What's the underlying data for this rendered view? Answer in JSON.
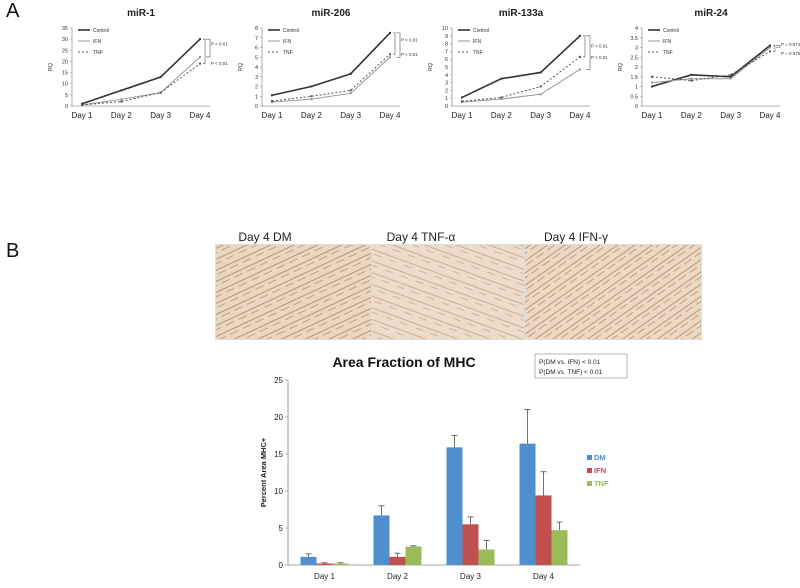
{
  "panels": {
    "a_label": "A",
    "b_label": "B"
  },
  "line_legend": [
    "Control",
    "IFN",
    "TNF"
  ],
  "micrographs": {
    "labels": [
      "Day 4 DM",
      "Day 4 TNF-α",
      "Day 4 IFN-γ"
    ]
  },
  "colors": {
    "dm": "#4f8fd0",
    "ifn": "#c0504d",
    "tnf": "#9bbb59"
  },
  "chart_data": [
    {
      "type": "line",
      "title": "miR-1",
      "ylabel": "RQ",
      "categories": [
        "Day 1",
        "Day 2",
        "Day 3",
        "Day 4"
      ],
      "ylim": [
        0,
        35
      ],
      "yticks": [
        0,
        5,
        10,
        15,
        20,
        25,
        30,
        35
      ],
      "series": [
        {
          "name": "Control",
          "values": [
            1,
            7,
            13,
            30
          ]
        },
        {
          "name": "IFN",
          "values": [
            0.5,
            3,
            6,
            22
          ]
        },
        {
          "name": "TNF",
          "values": [
            0.5,
            2,
            6,
            19
          ]
        }
      ],
      "annotations": [
        "P < 0.01",
        "P < 0.01"
      ]
    },
    {
      "type": "line",
      "title": "miR-206",
      "ylabel": "RQ",
      "categories": [
        "Day 1",
        "Day 2",
        "Day 3",
        "Day 4"
      ],
      "ylim": [
        0,
        8
      ],
      "yticks": [
        0,
        1,
        2,
        3,
        4,
        5,
        6,
        7,
        8
      ],
      "series": [
        {
          "name": "Control",
          "values": [
            1.1,
            2,
            3.3,
            7.5
          ]
        },
        {
          "name": "IFN",
          "values": [
            0.4,
            0.7,
            1.3,
            5
          ]
        },
        {
          "name": "TNF",
          "values": [
            0.5,
            1,
            1.6,
            5.3
          ]
        }
      ],
      "annotations": [
        "P < 0.01",
        "P < 0.01"
      ]
    },
    {
      "type": "line",
      "title": "miR-133a",
      "ylabel": "RQ",
      "categories": [
        "Day 1",
        "Day 2",
        "Day 3",
        "Day 4"
      ],
      "ylim": [
        0,
        10
      ],
      "yticks": [
        0,
        1,
        2,
        3,
        4,
        5,
        6,
        7,
        8,
        9,
        10
      ],
      "series": [
        {
          "name": "Control",
          "values": [
            1.1,
            3.5,
            4.3,
            9
          ]
        },
        {
          "name": "IFN",
          "values": [
            0.5,
            0.9,
            1.5,
            4.7
          ]
        },
        {
          "name": "TNF",
          "values": [
            0.6,
            1.1,
            2.5,
            6.3
          ]
        }
      ],
      "annotations": [
        "P < 0.01",
        "P < 0.01"
      ]
    },
    {
      "type": "line",
      "title": "miR-24",
      "ylabel": "RQ",
      "categories": [
        "Day 1",
        "Day 2",
        "Day 3",
        "Day 4"
      ],
      "ylim": [
        0,
        4
      ],
      "yticks": [
        0,
        0.5,
        1,
        1.5,
        2,
        2.5,
        3,
        3.5,
        4
      ],
      "series": [
        {
          "name": "Control",
          "values": [
            1,
            1.6,
            1.5,
            3.1
          ]
        },
        {
          "name": "IFN",
          "values": [
            1.2,
            1.4,
            1.4,
            3.0
          ]
        },
        {
          "name": "TNF",
          "values": [
            1.5,
            1.3,
            1.6,
            2.8
          ]
        }
      ],
      "annotations": [
        "P = 0.074",
        "P = 0.575"
      ]
    },
    {
      "type": "bar",
      "title": "Area Fraction of MHC",
      "ylabel": "Percent Area MHC+",
      "xlabel": "",
      "categories": [
        "Day 1",
        "Day 2",
        "Day 3",
        "Day 4"
      ],
      "ylim": [
        0,
        25
      ],
      "yticks": [
        0,
        5,
        10,
        15,
        20,
        25
      ],
      "series": [
        {
          "name": "DM",
          "values": [
            1.1,
            6.7,
            15.9,
            16.4
          ],
          "errors": [
            0.4,
            1.3,
            1.6,
            4.6
          ]
        },
        {
          "name": "IFN",
          "values": [
            0.2,
            1.1,
            5.5,
            9.4
          ],
          "errors": [
            0.1,
            0.5,
            1.0,
            3.2
          ]
        },
        {
          "name": "TNF",
          "values": [
            0.2,
            2.5,
            2.1,
            4.7
          ],
          "errors": [
            0.1,
            0.1,
            1.2,
            1.1
          ]
        }
      ],
      "annotations": [
        "P(DM vs. IFN) < 0.01",
        "P(DM vs. TNF) < 0.01"
      ]
    }
  ]
}
